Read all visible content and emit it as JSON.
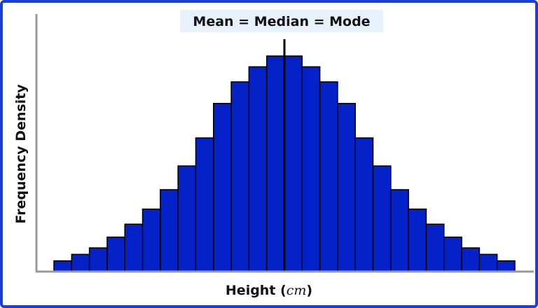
{
  "chart_data": {
    "type": "histogram",
    "title": "Mean = Median = Mode",
    "xlabel": {
      "text": "Height (",
      "unit": "cm",
      "close": ")"
    },
    "ylabel": "Frequency Density",
    "ylim": [
      0,
      1
    ],
    "grid": false,
    "bars": [
      0.05,
      0.08,
      0.11,
      0.16,
      0.22,
      0.29,
      0.38,
      0.49,
      0.62,
      0.78,
      0.88,
      0.95,
      1.0,
      1.0,
      0.95,
      0.88,
      0.78,
      0.62,
      0.49,
      0.38,
      0.29,
      0.22,
      0.16,
      0.11,
      0.08,
      0.05
    ],
    "center_line": true,
    "colors": {
      "bar_fill": "#0522c8",
      "bar_stroke": "#000000",
      "title_bg": "#e6f1fb",
      "axis": "#999999",
      "frame": "#1a3fd4"
    }
  }
}
